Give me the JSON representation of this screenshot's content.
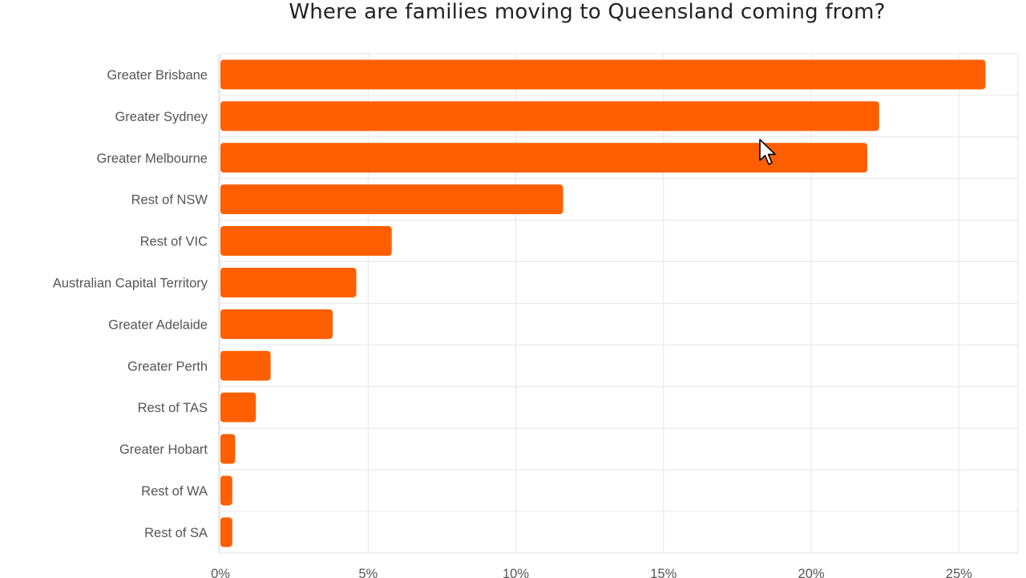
{
  "chart_data": {
    "type": "bar",
    "orientation": "horizontal",
    "title": "Where are families moving to Queensland coming from?",
    "xlabel": "",
    "ylabel": "",
    "categories": [
      "Greater Brisbane",
      "Greater Sydney",
      "Greater Melbourne",
      "Rest of NSW",
      "Rest of VIC",
      "Australian Capital Territory",
      "Greater Adelaide",
      "Greater Perth",
      "Rest of TAS",
      "Greater Hobart",
      "Rest of WA",
      "Rest of SA"
    ],
    "values": [
      25.9,
      22.3,
      21.9,
      11.6,
      5.8,
      4.6,
      3.8,
      1.7,
      1.2,
      0.5,
      0.4,
      0.4
    ],
    "xlim": [
      0,
      27
    ],
    "xticks": [
      0,
      5,
      10,
      15,
      20,
      25
    ],
    "xtick_labels": [
      "0%",
      "5%",
      "10%",
      "15%",
      "20%",
      "25%"
    ],
    "grid": true,
    "legend": "none",
    "bar_color": "#ff5f00",
    "grid_color": "#e6e6e6"
  },
  "cursor": {
    "icon": "mouse-pointer-icon"
  }
}
